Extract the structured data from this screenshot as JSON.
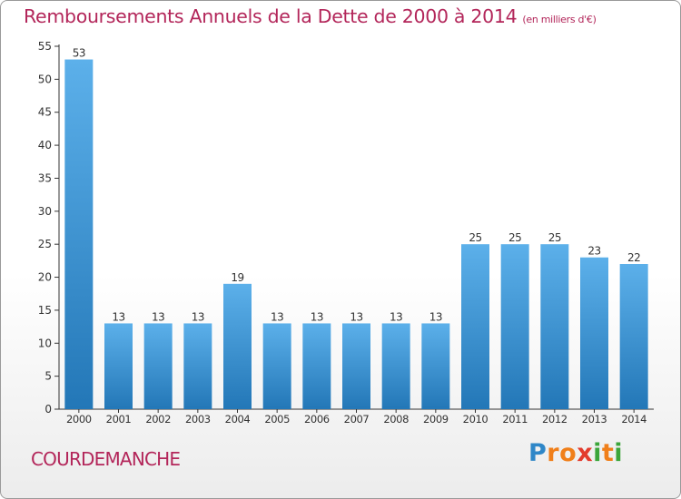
{
  "title": "Remboursements Annuels de la Dette de 2000 à 2014",
  "subtitle": "(en milliers d'€)",
  "city": "COURDEMANCHE",
  "logo": {
    "letters": [
      "P",
      "r",
      "o",
      "x",
      "i",
      "t",
      "i"
    ],
    "colors": [
      "#2f87c8",
      "#f07f1a",
      "#f07f1a",
      "#e33b2d",
      "#3ba53a",
      "#f07f1a",
      "#3ba53a"
    ]
  },
  "colors": {
    "bar_light": "#5cb0ea",
    "bar_dark": "#2377b7",
    "title": "#b3265a"
  },
  "chart_data": {
    "type": "bar",
    "categories": [
      "2000",
      "2001",
      "2002",
      "2003",
      "2004",
      "2005",
      "2006",
      "2007",
      "2008",
      "2009",
      "2010",
      "2011",
      "2012",
      "2013",
      "2014"
    ],
    "values": [
      53,
      13,
      13,
      13,
      19,
      13,
      13,
      13,
      13,
      13,
      25,
      25,
      25,
      23,
      22
    ],
    "y_ticks": [
      0,
      5,
      10,
      15,
      20,
      25,
      30,
      35,
      40,
      45,
      50,
      55
    ],
    "ylim": [
      0,
      55
    ],
    "grid": false
  }
}
